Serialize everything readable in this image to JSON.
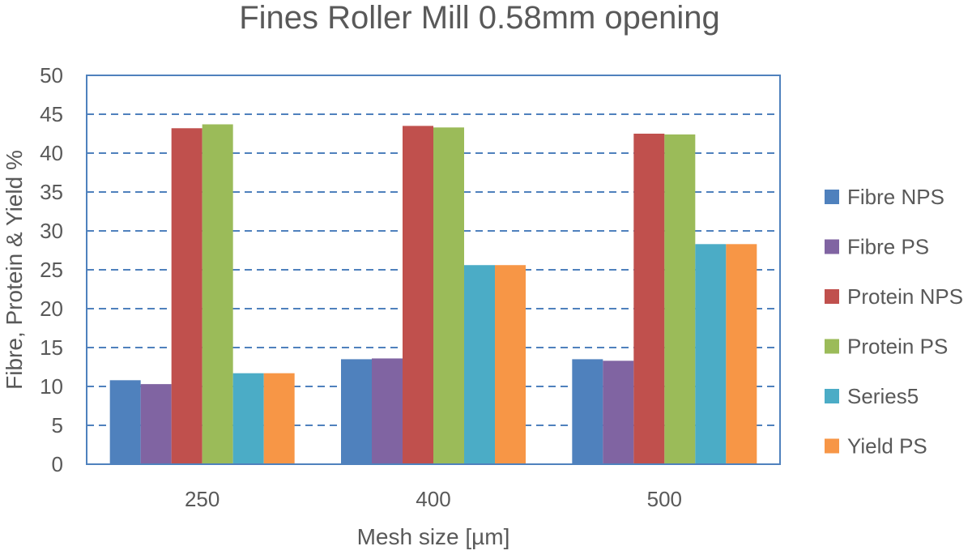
{
  "chart_data": {
    "type": "bar",
    "title": "Fines Roller Mill 0.58mm opening",
    "xlabel": "Mesh size [µm]",
    "ylabel": "Fibre, Protein & Yield %",
    "categories": [
      "250",
      "400",
      "500"
    ],
    "ylim": [
      0,
      50
    ],
    "yticks": [
      "0",
      "5",
      "10",
      "15",
      "20",
      "25",
      "30",
      "35",
      "40",
      "45",
      "50"
    ],
    "grid": true,
    "legend_position": "right",
    "series": [
      {
        "name": "Fibre NPS",
        "color": "#4f81bd",
        "values": [
          10.8,
          13.5,
          13.5
        ]
      },
      {
        "name": "Fibre PS",
        "color": "#8064a2",
        "values": [
          10.3,
          13.6,
          13.3
        ]
      },
      {
        "name": "Protein NPS",
        "color": "#c0504d",
        "values": [
          43.2,
          43.5,
          42.5
        ]
      },
      {
        "name": "Protein PS",
        "color": "#9bbb59",
        "values": [
          43.7,
          43.3,
          42.4
        ]
      },
      {
        "name": "Series5",
        "color": "#4bacc6",
        "values": [
          11.7,
          25.6,
          28.3
        ]
      },
      {
        "name": "Yield PS",
        "color": "#f79646",
        "values": [
          11.7,
          25.6,
          28.3
        ]
      }
    ]
  }
}
